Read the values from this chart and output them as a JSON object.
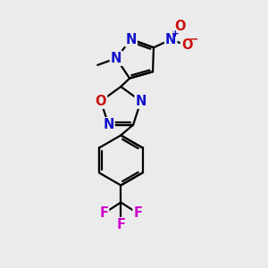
{
  "background_color": "#ebebeb",
  "bond_color": "#000000",
  "bond_width": 1.6,
  "atom_colors": {
    "N": "#1010cc",
    "O": "#cc1010",
    "F": "#cc00cc",
    "C": "#000000"
  },
  "font_size_atom": 10.5,
  "font_size_methyl": 9.5,
  "figsize": [
    3.0,
    3.0
  ],
  "dpi": 100
}
